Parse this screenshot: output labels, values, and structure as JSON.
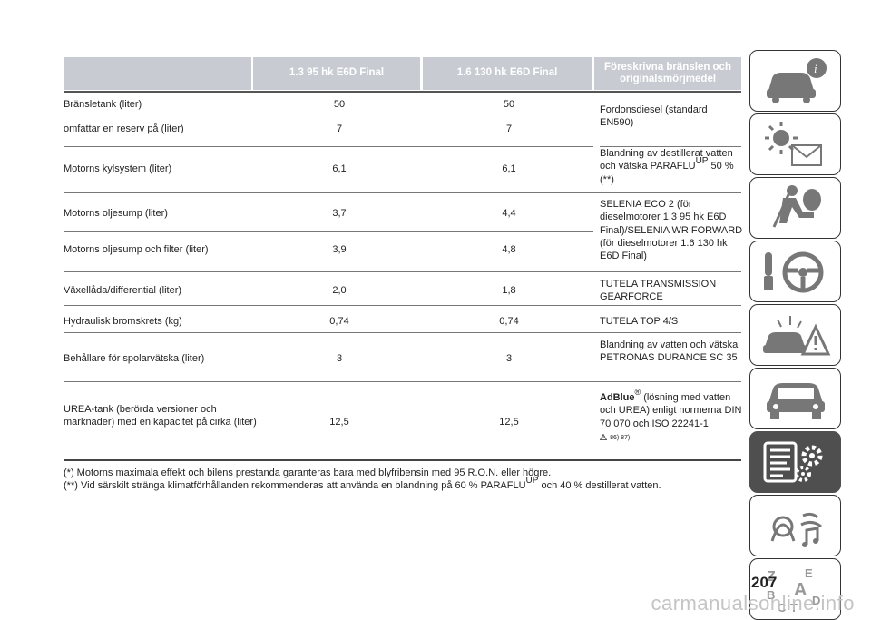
{
  "table": {
    "headers": [
      "",
      "1.3 95 hk E6D Final",
      "1.6 130 hk E6D Final",
      "Föreskrivna bränslen och originalsmörjmedel"
    ],
    "rows": [
      {
        "label": "Bränsletank (liter)",
        "v1": "50",
        "v2": "50"
      },
      {
        "label": "omfattar en reserv på (liter)",
        "v1": "7",
        "v2": "7"
      },
      {
        "label": "Motorns kylsystem (liter)",
        "v1": "6,1",
        "v2": "6,1"
      },
      {
        "label": "Motorns oljesump (liter)",
        "v1": "3,7",
        "v2": "4,4"
      },
      {
        "label": "Motorns oljesump och filter (liter)",
        "v1": "3,9",
        "v2": "4,8"
      },
      {
        "label": "Växellåda/differential (liter)",
        "v1": "2,0",
        "v2": "1,8"
      },
      {
        "label": "Hydraulisk bromskrets (kg)",
        "v1": "0,74",
        "v2": "0,74"
      },
      {
        "label": "Behållare för spolarvätska (liter)",
        "v1": "3",
        "v2": "3"
      },
      {
        "label": "UREA-tank (berörda versioner och marknader) med en kapacitet på cirka (liter)",
        "v1": "12,5",
        "v2": "12,5"
      }
    ],
    "specs": {
      "fuel": "Fordonsdiesel (standard EN590)",
      "coolant_a": "Blandning av destillerat vatten och vätska PARAFLU",
      "coolant_sup": "UP",
      "coolant_b": " 50 % (**)",
      "oil": "SELENIA ECO 2 (för dieselmotorer 1.3 95 hk E6D Final)/SELENIA WR FORWARD (för dieselmotorer 1.6 130 hk E6D Final)",
      "gearbox": "TUTELA TRANSMISSION GEARFORCE",
      "brake": "TUTELA TOP 4/S",
      "washer": "Blandning av vatten och vätska PETRONAS DURANCE SC 35",
      "urea_brand": "AdBlue",
      "urea_reg": "®",
      "urea_text": "(lösning med vatten och UREA) enligt normerna DIN 70 070 och ISO 22241-1",
      "urea_refs": "86) 87)"
    }
  },
  "footnotes": {
    "note1": "(*) Motorns maximala effekt och bilens prestanda garanteras bara med blyfribensin med 95 R.O.N. eller högre.",
    "note2_a": "(**) Vid särskilt stränga klimatförhållanden rekommenderas att använda en blandning på 60 % PARAFLU",
    "note2_sup": "UP",
    "note2_b": "och 40 % destillerat vatten."
  },
  "sidebar": {
    "icons": [
      "car-info-icon",
      "warning-lights-icon",
      "safety-airbag-icon",
      "steering-key-icon",
      "emergency-icon",
      "maintenance-icon",
      "technical-data-icon",
      "multimedia-icon",
      "index-icon"
    ],
    "active_index": 6,
    "active_color": "#4f4f4f"
  },
  "page_number": "207",
  "watermark": "carmanualsonline.info"
}
